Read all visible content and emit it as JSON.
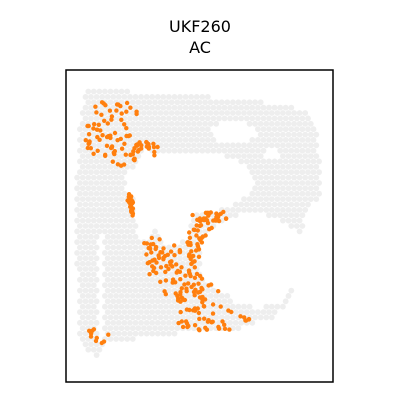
{
  "chart_data": {
    "type": "scatter",
    "title_lines": [
      "UKF260",
      "AC"
    ],
    "xlabel": "",
    "ylabel": "",
    "xlim": [
      0,
      1
    ],
    "ylim": [
      0,
      1
    ],
    "grid": false,
    "legend": "none",
    "background_color": "#eeeeee",
    "highlight_color": "#ff7f0e",
    "frame_color": "#000000",
    "background_spot_count": 1900,
    "highlight_spot_count": 420,
    "tissue_outline": [
      [
        0.07,
        0.93
      ],
      [
        0.12,
        0.94
      ],
      [
        0.25,
        0.93
      ],
      [
        0.42,
        0.92
      ],
      [
        0.6,
        0.91
      ],
      [
        0.8,
        0.89
      ],
      [
        0.91,
        0.87
      ],
      [
        0.93,
        0.84
      ],
      [
        0.95,
        0.72
      ],
      [
        0.95,
        0.6
      ],
      [
        0.9,
        0.54
      ],
      [
        0.88,
        0.48
      ],
      [
        0.88,
        0.44
      ],
      [
        0.86,
        0.36
      ],
      [
        0.84,
        0.27
      ],
      [
        0.78,
        0.2
      ],
      [
        0.73,
        0.2
      ],
      [
        0.64,
        0.17
      ],
      [
        0.5,
        0.16
      ],
      [
        0.34,
        0.15
      ],
      [
        0.22,
        0.13
      ],
      [
        0.15,
        0.12
      ],
      [
        0.11,
        0.08
      ],
      [
        0.08,
        0.1
      ],
      [
        0.05,
        0.14
      ],
      [
        0.04,
        0.4
      ],
      [
        0.04,
        0.65
      ],
      [
        0.05,
        0.82
      ]
    ],
    "holes": [
      {
        "cx": 0.63,
        "cy": 0.8,
        "rx": 0.09,
        "ry": 0.035
      },
      {
        "cx": 0.77,
        "cy": 0.73,
        "rx": 0.03,
        "ry": 0.015
      },
      {
        "cx": 0.46,
        "cy": 0.64,
        "rx": 0.24,
        "ry": 0.1
      },
      {
        "cx": 0.4,
        "cy": 0.52,
        "rx": 0.07,
        "ry": 0.08
      },
      {
        "cx": 0.7,
        "cy": 0.4,
        "rx": 0.2,
        "ry": 0.14
      },
      {
        "cx": 0.3,
        "cy": 0.6,
        "rx": 0.05,
        "ry": 0.15
      },
      {
        "cx": 0.13,
        "cy": 0.3,
        "rx": 0.015,
        "ry": 0.18
      },
      {
        "cx": 0.72,
        "cy": 0.3,
        "rx": 0.12,
        "ry": 0.06
      }
    ],
    "highlight_regions": [
      {
        "cx": 0.18,
        "cy": 0.8,
        "rx": 0.11,
        "ry": 0.12,
        "n": 75
      },
      {
        "cx": 0.3,
        "cy": 0.72,
        "rx": 0.06,
        "ry": 0.05,
        "n": 25
      },
      {
        "cx": 0.33,
        "cy": 0.58,
        "rx": 0.1,
        "ry": 0.08,
        "n": 35
      },
      {
        "cx": 0.47,
        "cy": 0.42,
        "rx": 0.18,
        "ry": 0.17,
        "n": 150
      },
      {
        "cx": 0.55,
        "cy": 0.2,
        "rx": 0.14,
        "ry": 0.05,
        "n": 45
      },
      {
        "cx": 0.68,
        "cy": 0.32,
        "rx": 0.08,
        "ry": 0.06,
        "n": 30
      },
      {
        "cx": 0.7,
        "cy": 0.48,
        "rx": 0.09,
        "ry": 0.05,
        "n": 30
      },
      {
        "cx": 0.52,
        "cy": 0.55,
        "rx": 0.06,
        "ry": 0.05,
        "n": 20
      },
      {
        "cx": 0.12,
        "cy": 0.15,
        "rx": 0.04,
        "ry": 0.03,
        "n": 10
      }
    ]
  }
}
